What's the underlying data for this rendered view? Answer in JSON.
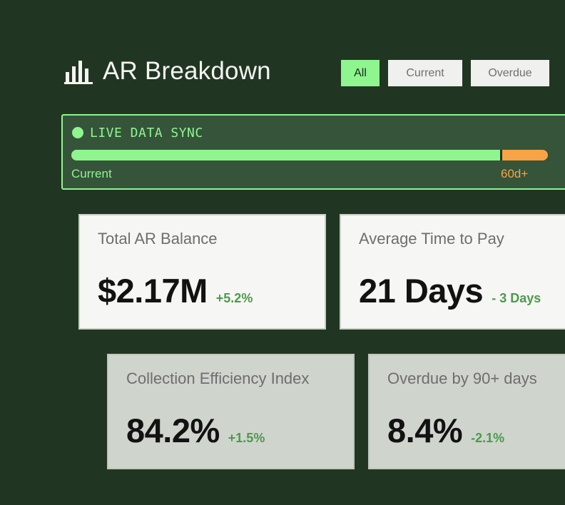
{
  "header": {
    "title": "AR Breakdown",
    "icon": "bar-chart-icon"
  },
  "filters": [
    {
      "label": "All",
      "active": true
    },
    {
      "label": "Current",
      "active": false
    },
    {
      "label": "Overdue",
      "active": false
    }
  ],
  "sync": {
    "label": "LIVE DATA SYNC",
    "progress": {
      "current_fraction": 0.9,
      "overdue_fraction": 0.1
    },
    "legend_current": "Current",
    "legend_overdue": "60d+"
  },
  "metrics": [
    {
      "label": "Total AR Balance",
      "value": "$2.17M",
      "delta": "+5.2%"
    },
    {
      "label": "Average Time to Pay",
      "value": "21 Days",
      "delta": "- 3 Days"
    },
    {
      "label": "Collection Efficiency Index",
      "value": "84.2%",
      "delta": "+1.5%"
    },
    {
      "label": "Overdue by 90+ days",
      "value": "8.4%",
      "delta": "-2.1%"
    }
  ],
  "colors": {
    "background": "#213622",
    "accent": "#8ff58f",
    "warning": "#f7a447",
    "positive_delta": "#4c9a4c"
  }
}
